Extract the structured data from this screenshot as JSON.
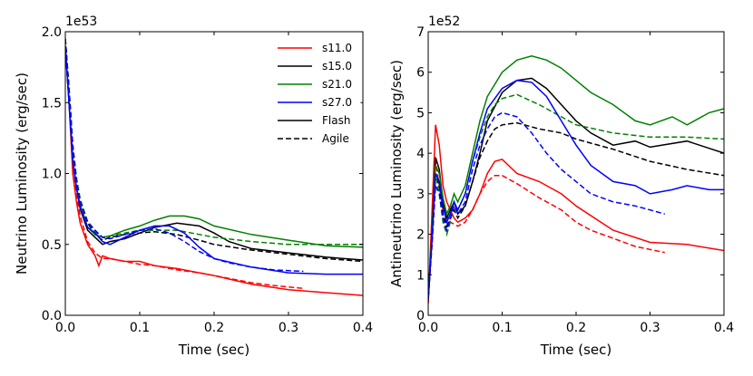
{
  "chart_data": [
    {
      "type": "line",
      "xlabel": "Time (sec)",
      "ylabel": "Neutrino Luminosity (erg/sec)",
      "offset_text": "1e53",
      "xlim": [
        0.0,
        0.4
      ],
      "ylim": [
        0.0,
        2.0
      ],
      "xticks": [
        "0.0",
        "0.1",
        "0.2",
        "0.3",
        "0.4"
      ],
      "yticks": [
        "0.0",
        "0.5",
        "1.0",
        "1.5",
        "2.0"
      ],
      "legend": {
        "placement": "top-right",
        "entries": [
          {
            "label": "s11.0",
            "color": "#ff0000",
            "style": "solid"
          },
          {
            "label": "s15.0",
            "color": "#000000",
            "style": "solid"
          },
          {
            "label": "s21.0",
            "color": "#008000",
            "style": "solid"
          },
          {
            "label": "s27.0",
            "color": "#0000ff",
            "style": "solid"
          },
          {
            "label": "Flash",
            "color": "#000000",
            "style": "solid"
          },
          {
            "label": "Agile",
            "color": "#000000",
            "style": "dashed"
          }
        ]
      },
      "series": [
        {
          "name": "s11.0 Flash",
          "color": "#ff0000",
          "style": "solid",
          "x": [
            0.0,
            0.005,
            0.01,
            0.015,
            0.02,
            0.03,
            0.04,
            0.045,
            0.05,
            0.06,
            0.08,
            0.1,
            0.12,
            0.15,
            0.18,
            0.2,
            0.25,
            0.3,
            0.35,
            0.4
          ],
          "y": [
            1.9,
            1.5,
            1.0,
            0.8,
            0.65,
            0.5,
            0.42,
            0.35,
            0.42,
            0.4,
            0.38,
            0.38,
            0.35,
            0.33,
            0.3,
            0.28,
            0.22,
            0.18,
            0.16,
            0.14
          ]
        },
        {
          "name": "s11.0 Agile",
          "color": "#ff0000",
          "style": "dashed",
          "x": [
            0.0,
            0.005,
            0.01,
            0.015,
            0.02,
            0.03,
            0.04,
            0.05,
            0.06,
            0.08,
            0.1,
            0.12,
            0.15,
            0.18,
            0.2,
            0.22,
            0.25,
            0.28,
            0.3,
            0.32
          ],
          "y": [
            1.95,
            1.6,
            1.1,
            0.85,
            0.7,
            0.52,
            0.44,
            0.4,
            0.4,
            0.38,
            0.36,
            0.35,
            0.32,
            0.3,
            0.28,
            0.26,
            0.23,
            0.21,
            0.2,
            0.19
          ]
        },
        {
          "name": "s15.0 Flash",
          "color": "#000000",
          "style": "solid",
          "x": [
            0.0,
            0.005,
            0.01,
            0.015,
            0.02,
            0.03,
            0.04,
            0.05,
            0.06,
            0.08,
            0.1,
            0.12,
            0.15,
            0.18,
            0.2,
            0.22,
            0.25,
            0.3,
            0.35,
            0.4
          ],
          "y": [
            1.9,
            1.5,
            1.1,
            0.9,
            0.75,
            0.6,
            0.55,
            0.5,
            0.52,
            0.54,
            0.58,
            0.62,
            0.65,
            0.63,
            0.58,
            0.52,
            0.47,
            0.44,
            0.41,
            0.39
          ]
        },
        {
          "name": "s15.0 Agile",
          "color": "#000000",
          "style": "dashed",
          "x": [
            0.0,
            0.005,
            0.01,
            0.015,
            0.02,
            0.03,
            0.04,
            0.05,
            0.06,
            0.08,
            0.1,
            0.12,
            0.15,
            0.18,
            0.2,
            0.25,
            0.3,
            0.35,
            0.4
          ],
          "y": [
            1.95,
            1.6,
            1.2,
            0.95,
            0.8,
            0.65,
            0.57,
            0.53,
            0.55,
            0.57,
            0.58,
            0.59,
            0.57,
            0.53,
            0.5,
            0.46,
            0.43,
            0.4,
            0.38
          ]
        },
        {
          "name": "s21.0 Flash",
          "color": "#008000",
          "style": "solid",
          "x": [
            0.0,
            0.005,
            0.01,
            0.015,
            0.02,
            0.03,
            0.04,
            0.05,
            0.06,
            0.08,
            0.1,
            0.12,
            0.14,
            0.16,
            0.18,
            0.2,
            0.25,
            0.3,
            0.35,
            0.4
          ],
          "y": [
            1.9,
            1.5,
            1.1,
            0.9,
            0.78,
            0.62,
            0.57,
            0.55,
            0.56,
            0.6,
            0.63,
            0.67,
            0.7,
            0.7,
            0.68,
            0.63,
            0.57,
            0.53,
            0.49,
            0.48
          ]
        },
        {
          "name": "s21.0 Agile",
          "color": "#008000",
          "style": "dashed",
          "x": [
            0.0,
            0.005,
            0.01,
            0.015,
            0.02,
            0.03,
            0.04,
            0.05,
            0.06,
            0.08,
            0.1,
            0.12,
            0.15,
            0.18,
            0.2,
            0.25,
            0.3,
            0.35,
            0.4
          ],
          "y": [
            1.95,
            1.6,
            1.2,
            0.97,
            0.82,
            0.66,
            0.59,
            0.55,
            0.56,
            0.58,
            0.6,
            0.6,
            0.6,
            0.57,
            0.55,
            0.52,
            0.5,
            0.5,
            0.5
          ]
        },
        {
          "name": "s27.0 Flash",
          "color": "#0000ff",
          "style": "solid",
          "x": [
            0.0,
            0.005,
            0.01,
            0.015,
            0.02,
            0.03,
            0.04,
            0.05,
            0.06,
            0.08,
            0.1,
            0.12,
            0.14,
            0.16,
            0.18,
            0.2,
            0.25,
            0.3,
            0.35,
            0.4
          ],
          "y": [
            1.9,
            1.5,
            1.1,
            0.9,
            0.76,
            0.62,
            0.58,
            0.52,
            0.5,
            0.55,
            0.6,
            0.63,
            0.63,
            0.58,
            0.48,
            0.4,
            0.34,
            0.3,
            0.29,
            0.29
          ]
        },
        {
          "name": "s27.0 Agile",
          "color": "#0000ff",
          "style": "dashed",
          "x": [
            0.0,
            0.005,
            0.01,
            0.015,
            0.02,
            0.03,
            0.04,
            0.05,
            0.06,
            0.08,
            0.1,
            0.12,
            0.14,
            0.16,
            0.18,
            0.2,
            0.22,
            0.25,
            0.28,
            0.32
          ],
          "y": [
            1.95,
            1.6,
            1.2,
            0.95,
            0.8,
            0.66,
            0.6,
            0.55,
            0.54,
            0.57,
            0.6,
            0.61,
            0.58,
            0.52,
            0.45,
            0.4,
            0.37,
            0.34,
            0.32,
            0.31
          ]
        }
      ]
    },
    {
      "type": "line",
      "xlabel": "Time (sec)",
      "ylabel": "Antineutrino Luminosity (erg/sec)",
      "offset_text": "1e52",
      "xlim": [
        0.0,
        0.4
      ],
      "ylim": [
        0,
        7
      ],
      "xticks": [
        "0.0",
        "0.1",
        "0.2",
        "0.3",
        "0.4"
      ],
      "yticks": [
        "0",
        "1",
        "2",
        "3",
        "4",
        "5",
        "6",
        "7"
      ],
      "series": [
        {
          "name": "s11.0 Flash",
          "color": "#ff0000",
          "style": "solid",
          "x": [
            0.0,
            0.005,
            0.01,
            0.015,
            0.02,
            0.025,
            0.03,
            0.035,
            0.04,
            0.05,
            0.06,
            0.07,
            0.08,
            0.09,
            0.1,
            0.12,
            0.15,
            0.18,
            0.2,
            0.25,
            0.3,
            0.35,
            0.4
          ],
          "y": [
            0.3,
            2.5,
            4.7,
            4.2,
            3.2,
            2.8,
            2.6,
            2.4,
            2.3,
            2.4,
            2.6,
            3.0,
            3.5,
            3.8,
            3.85,
            3.5,
            3.3,
            3.0,
            2.7,
            2.1,
            1.8,
            1.75,
            1.6
          ]
        },
        {
          "name": "s11.0 Agile",
          "color": "#ff0000",
          "style": "dashed",
          "x": [
            0.0,
            0.005,
            0.01,
            0.015,
            0.02,
            0.03,
            0.04,
            0.05,
            0.06,
            0.07,
            0.08,
            0.09,
            0.1,
            0.12,
            0.15,
            0.18,
            0.2,
            0.22,
            0.25,
            0.28,
            0.32
          ],
          "y": [
            0.3,
            2.0,
            3.8,
            3.2,
            2.6,
            2.3,
            2.2,
            2.3,
            2.6,
            3.0,
            3.3,
            3.45,
            3.45,
            3.25,
            2.9,
            2.6,
            2.3,
            2.1,
            1.9,
            1.7,
            1.55
          ]
        },
        {
          "name": "s15.0 Flash",
          "color": "#000000",
          "style": "solid",
          "x": [
            0.0,
            0.005,
            0.01,
            0.015,
            0.02,
            0.025,
            0.03,
            0.035,
            0.04,
            0.05,
            0.06,
            0.07,
            0.08,
            0.1,
            0.12,
            0.14,
            0.16,
            0.18,
            0.2,
            0.22,
            0.25,
            0.28,
            0.3,
            0.35,
            0.4
          ],
          "y": [
            0.4,
            2.0,
            3.9,
            3.6,
            2.8,
            2.4,
            2.6,
            2.8,
            2.5,
            2.7,
            3.3,
            4.0,
            4.8,
            5.5,
            5.8,
            5.85,
            5.6,
            5.2,
            4.8,
            4.5,
            4.2,
            4.3,
            4.15,
            4.3,
            4.0
          ]
        },
        {
          "name": "s15.0 Agile",
          "color": "#000000",
          "style": "dashed",
          "x": [
            0.0,
            0.005,
            0.01,
            0.015,
            0.02,
            0.025,
            0.03,
            0.035,
            0.04,
            0.05,
            0.06,
            0.07,
            0.08,
            0.09,
            0.1,
            0.12,
            0.15,
            0.18,
            0.2,
            0.25,
            0.3,
            0.35,
            0.4
          ],
          "y": [
            0.4,
            1.8,
            3.5,
            3.2,
            2.5,
            2.2,
            2.4,
            2.6,
            2.4,
            2.7,
            3.3,
            3.9,
            4.3,
            4.6,
            4.7,
            4.75,
            4.6,
            4.5,
            4.35,
            4.1,
            3.8,
            3.6,
            3.45
          ]
        },
        {
          "name": "s21.0 Flash",
          "color": "#008000",
          "style": "solid",
          "x": [
            0.0,
            0.005,
            0.01,
            0.015,
            0.02,
            0.025,
            0.03,
            0.035,
            0.04,
            0.05,
            0.06,
            0.07,
            0.08,
            0.1,
            0.12,
            0.14,
            0.16,
            0.18,
            0.2,
            0.22,
            0.25,
            0.28,
            0.3,
            0.33,
            0.35,
            0.38,
            0.4
          ],
          "y": [
            0.4,
            1.9,
            3.7,
            3.5,
            2.9,
            2.5,
            2.7,
            3.0,
            2.8,
            3.2,
            4.0,
            4.8,
            5.4,
            6.0,
            6.3,
            6.4,
            6.3,
            6.1,
            5.8,
            5.5,
            5.2,
            4.8,
            4.7,
            4.9,
            4.7,
            5.0,
            5.1
          ]
        },
        {
          "name": "s21.0 Agile",
          "color": "#008000",
          "style": "dashed",
          "x": [
            0.0,
            0.005,
            0.01,
            0.015,
            0.02,
            0.025,
            0.03,
            0.035,
            0.04,
            0.05,
            0.06,
            0.07,
            0.08,
            0.09,
            0.1,
            0.12,
            0.15,
            0.18,
            0.2,
            0.25,
            0.3,
            0.35,
            0.4
          ],
          "y": [
            0.4,
            1.8,
            3.5,
            3.0,
            2.3,
            2.0,
            2.3,
            2.8,
            2.6,
            3.0,
            3.8,
            4.4,
            4.9,
            5.2,
            5.35,
            5.45,
            5.2,
            4.9,
            4.7,
            4.5,
            4.4,
            4.4,
            4.35
          ]
        },
        {
          "name": "s27.0 Flash",
          "color": "#0000ff",
          "style": "solid",
          "x": [
            0.0,
            0.005,
            0.01,
            0.015,
            0.02,
            0.025,
            0.03,
            0.035,
            0.04,
            0.05,
            0.06,
            0.07,
            0.08,
            0.1,
            0.12,
            0.14,
            0.16,
            0.18,
            0.2,
            0.22,
            0.25,
            0.28,
            0.3,
            0.33,
            0.35,
            0.38,
            0.4
          ],
          "y": [
            0.4,
            1.8,
            3.5,
            3.3,
            2.7,
            2.3,
            2.5,
            2.8,
            2.6,
            3.0,
            3.8,
            4.5,
            5.1,
            5.6,
            5.8,
            5.75,
            5.4,
            4.8,
            4.2,
            3.7,
            3.3,
            3.2,
            3.0,
            3.1,
            3.2,
            3.1,
            3.1
          ]
        },
        {
          "name": "s27.0 Agile",
          "color": "#0000ff",
          "style": "dashed",
          "x": [
            0.0,
            0.005,
            0.01,
            0.015,
            0.02,
            0.025,
            0.03,
            0.035,
            0.04,
            0.05,
            0.06,
            0.07,
            0.08,
            0.09,
            0.1,
            0.12,
            0.14,
            0.16,
            0.18,
            0.2,
            0.22,
            0.25,
            0.28,
            0.3,
            0.32
          ],
          "y": [
            0.4,
            1.7,
            3.2,
            3.0,
            2.4,
            2.1,
            2.4,
            2.7,
            2.5,
            2.8,
            3.6,
            4.2,
            4.6,
            4.9,
            5.0,
            4.9,
            4.5,
            4.0,
            3.6,
            3.3,
            3.0,
            2.8,
            2.7,
            2.6,
            2.5
          ]
        }
      ]
    }
  ]
}
